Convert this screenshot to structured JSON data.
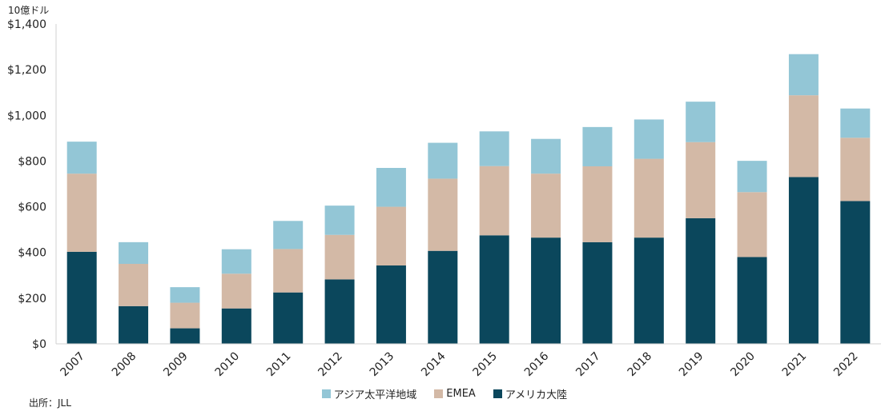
{
  "chart_data": {
    "type": "bar",
    "stacked": true,
    "unit_label": "10億ドル",
    "source": "出所：JLL",
    "categories": [
      "2007",
      "2008",
      "2009",
      "2010",
      "2011",
      "2012",
      "2013",
      "2014",
      "2015",
      "2016",
      "2017",
      "2018",
      "2019",
      "2020",
      "2021",
      "2022"
    ],
    "series": [
      {
        "name": "アメリカ大陸",
        "color": "#0b475c",
        "values": [
          403,
          165,
          68,
          155,
          225,
          282,
          343,
          407,
          475,
          465,
          445,
          465,
          550,
          380,
          730,
          625
        ]
      },
      {
        "name": "EMEA",
        "color": "#d3b9a6",
        "values": [
          342,
          185,
          112,
          152,
          190,
          195,
          257,
          316,
          303,
          280,
          332,
          345,
          333,
          284,
          358,
          277
        ]
      },
      {
        "name": "アジア太平洋地域",
        "color": "#93c6d6",
        "values": [
          140,
          95,
          68,
          107,
          123,
          128,
          170,
          157,
          152,
          152,
          172,
          172,
          177,
          137,
          180,
          128
        ]
      }
    ],
    "legend_order": [
      "アジア太平洋地域",
      "EMEA",
      "アメリカ大陸"
    ],
    "ylim": [
      0,
      1400
    ],
    "yticks": [
      0,
      200,
      400,
      600,
      800,
      1000,
      1200,
      1400
    ],
    "ytick_labels": [
      "$0",
      "$200",
      "$400",
      "$600",
      "$800",
      "$1,000",
      "$1,200",
      "$1,400"
    ],
    "grid": false,
    "legend_position": "bottom"
  }
}
